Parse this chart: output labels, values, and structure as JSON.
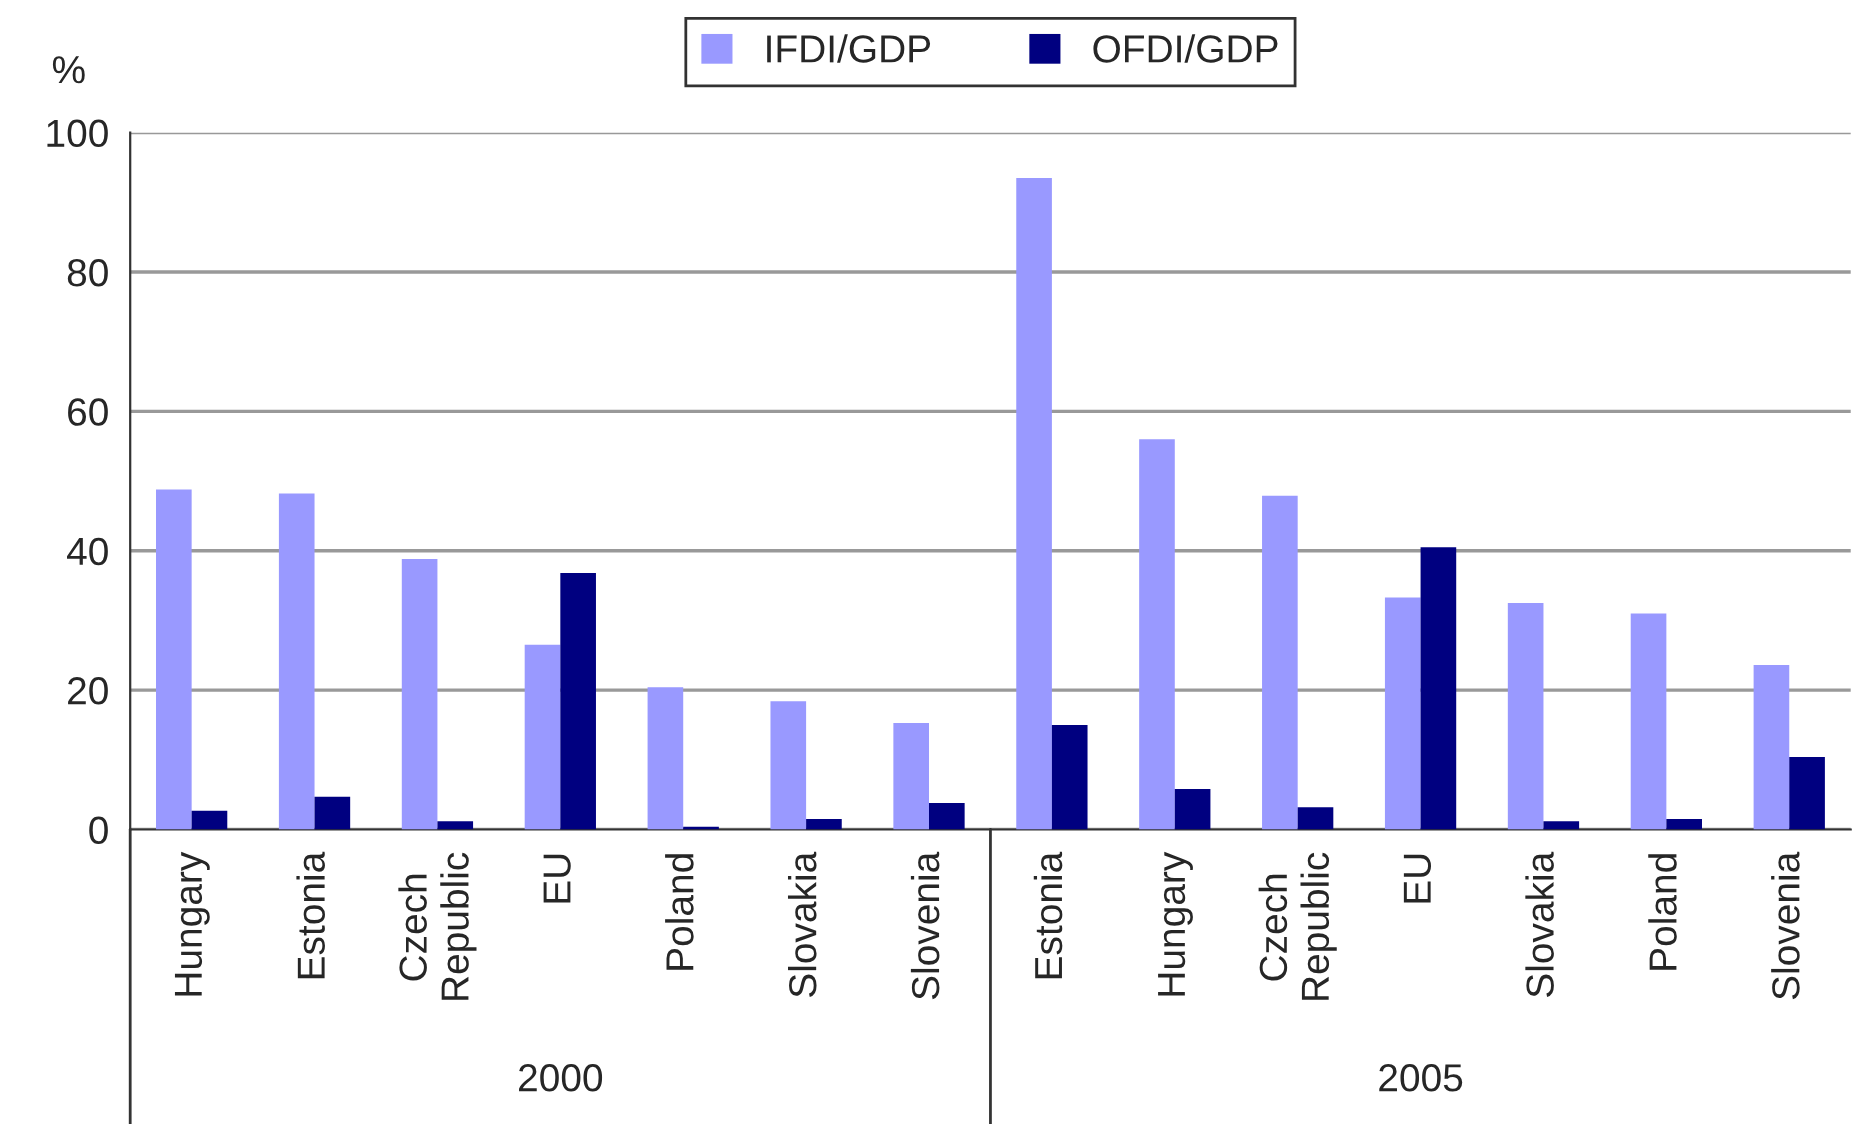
{
  "chart_data": {
    "type": "bar",
    "ylabel": "%",
    "categories": [
      "Hungary",
      "Estonia",
      "Czech Republic",
      "EU",
      "Poland",
      "Slovakia",
      "Slovenia",
      "Estonia",
      "Hungary",
      "Czech Republic",
      "EU",
      "Slovakia",
      "Poland",
      "Slovenia"
    ],
    "series": [
      {
        "name": "IFDI/GDP",
        "color": "#9999ff",
        "values": [
          48.8,
          48.2,
          38.8,
          26.5,
          20.4,
          18.4,
          15.3,
          93.5,
          56.0,
          47.9,
          33.3,
          32.5,
          31.0,
          23.6
        ]
      },
      {
        "name": "OFDI/GDP",
        "color": "#000080",
        "values": [
          2.7,
          4.7,
          1.2,
          36.8,
          0.4,
          1.5,
          3.8,
          15.0,
          5.8,
          3.2,
          40.5,
          1.2,
          1.5,
          10.4
        ]
      }
    ],
    "ylim": [
      0,
      100
    ],
    "yticks": [
      0,
      20,
      40,
      60,
      80,
      100
    ],
    "grid": "y",
    "legend": "top",
    "annotations": [
      "2000",
      "2005"
    ]
  }
}
